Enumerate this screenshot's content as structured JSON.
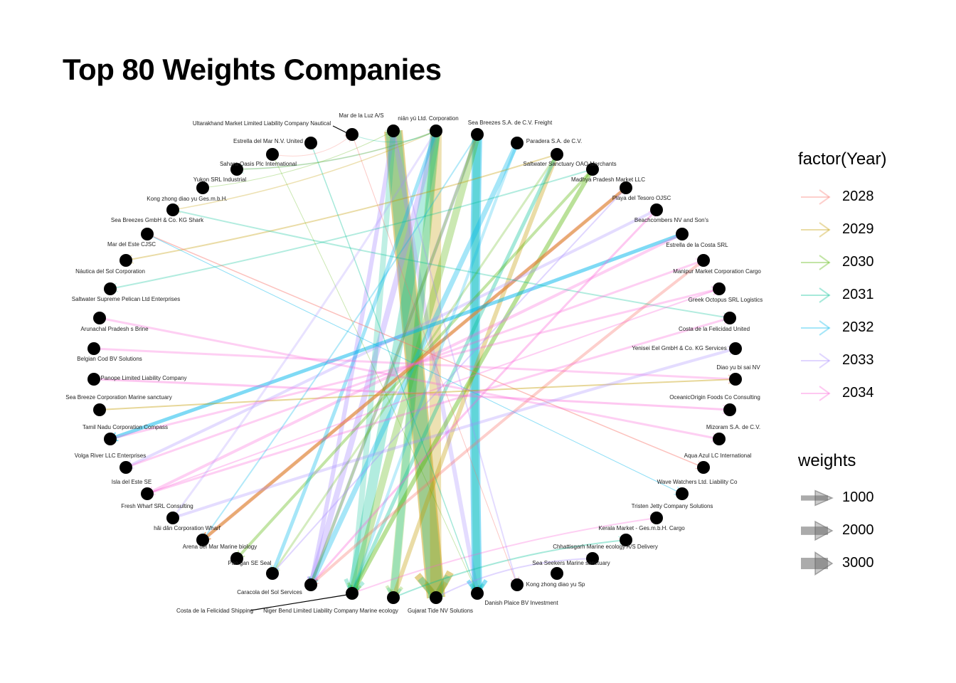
{
  "title": "Top 80 Weights Companies",
  "legend_year": {
    "title": "factor(Year)",
    "items": [
      {
        "label": "2028",
        "color": "#F8766D"
      },
      {
        "label": "2029",
        "color": "#C49A00"
      },
      {
        "label": "2030",
        "color": "#53B400"
      },
      {
        "label": "2031",
        "color": "#00C094"
      },
      {
        "label": "2032",
        "color": "#00B6EB"
      },
      {
        "label": "2033",
        "color": "#A58AFF"
      },
      {
        "label": "2034",
        "color": "#FB61D7"
      }
    ]
  },
  "legend_weights": {
    "title": "weights",
    "items": [
      {
        "label": "1000",
        "value": 1000
      },
      {
        "label": "2000",
        "value": 2000
      },
      {
        "label": "3000",
        "value": 3000
      }
    ]
  },
  "nodes": [
    {
      "name": "Mar de la Luz A/S"
    },
    {
      "name": "Ultarakhand  Market Limited Liability Company Nautical"
    },
    {
      "name": "Estrella del Mar N.V. United"
    },
    {
      "name": "Sahara  Oasis  Plc International"
    },
    {
      "name": "Yukon  SRL Industrial"
    },
    {
      "name": "Kong zhong diao yu  Ges.m.b.H."
    },
    {
      "name": "Sea Breezes GmbH & Co. KG Shark"
    },
    {
      "name": "Mar del Este CJSC"
    },
    {
      "name": "Náutica del Sol Corporation"
    },
    {
      "name": "Saltwater Supreme Pelican Ltd Enterprises"
    },
    {
      "name": "Arunachal Pradesh s Brine"
    },
    {
      "name": "Belgian Cod BV Solutions"
    },
    {
      "name": "Panope Limited Liability Company"
    },
    {
      "name": "Sea Breeze Corporation Marine sanctuary"
    },
    {
      "name": "Tamil Nadu   Corporation Compass"
    },
    {
      "name": "Volga River LLC Enterprises"
    },
    {
      "name": "Isla del Este SE"
    },
    {
      "name": "Fresh Wharf SRL Consulting"
    },
    {
      "name": "hǎi dǎn Corporation Wharf"
    },
    {
      "name": "Arena del Mar Marine biology"
    },
    {
      "name": "Pao gan SE Seal"
    },
    {
      "name": "Caracola del Sol Services"
    },
    {
      "name": "Costa de la Felicidad Shipping"
    },
    {
      "name": "Niger Bend   Limited Liability Company Marine ecology"
    },
    {
      "name": "Gujarat   Tide NV Solutions"
    },
    {
      "name": "Danish Plaice BV Investment"
    },
    {
      "name": "Kong zhong diao yu  Sp"
    },
    {
      "name": "Sea Seekers Marine sanctuary"
    },
    {
      "name": "Chhattisgarh   Marine ecology A/S Delivery"
    },
    {
      "name": "Kerala  Market - Ges.m.b.H. Cargo"
    },
    {
      "name": "Tristen Jetty Company Solutions"
    },
    {
      "name": "Wave Watchers Ltd. Liability Co"
    },
    {
      "name": "Aqua Azul LC International"
    },
    {
      "name": "Mizoram   S.A. de C.V."
    },
    {
      "name": "OceanicOrigin Foods Co Consulting"
    },
    {
      "name": "Diao yu bi sai  NV"
    },
    {
      "name": "Yenisei   Eel GmbH & Co. KG Services"
    },
    {
      "name": "Costa de la Felicidad United"
    },
    {
      "name": "Greek Octopus SRL Logistics"
    },
    {
      "name": "Manipur   Market Corporation Cargo"
    },
    {
      "name": "Estrella de la Costa SRL"
    },
    {
      "name": "Beachcombers NV and Son's"
    },
    {
      "name": "Playa del Tesoro OJSC"
    },
    {
      "name": "Madhya Pradesh   Market LLC"
    },
    {
      "name": "Saltwater Sanctuary OAO Merchants"
    },
    {
      "name": "Paradera S.A. de C.V."
    },
    {
      "name": "Sea Breezes S.A. de C.V. Freight"
    },
    {
      "name": "niān yú Ltd. Corporation"
    }
  ]
}
